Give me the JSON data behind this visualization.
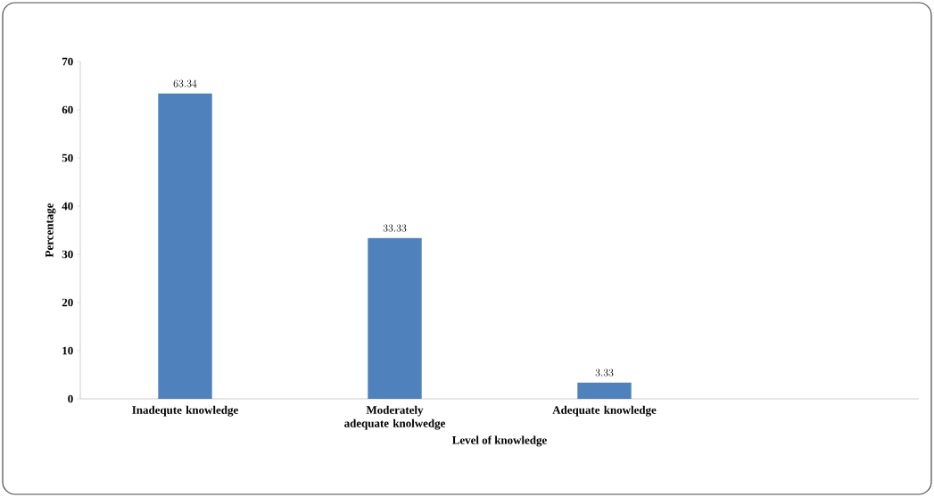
{
  "chart_data": {
    "type": "bar",
    "xlabel": "Level of knowledge",
    "ylabel": "Percentage",
    "categories": [
      "Inadequte knowledge",
      "Moderately adequate knolwedge",
      "Adequate knowledge",
      null
    ],
    "values": [
      63.34,
      33.33,
      3.33,
      null
    ],
    "color": "#4f81bd",
    "ylim": [
      0,
      70
    ],
    "yticks": [
      0,
      10,
      20,
      30,
      40,
      50,
      60,
      70
    ],
    "data_labels": true,
    "grid": false
  }
}
